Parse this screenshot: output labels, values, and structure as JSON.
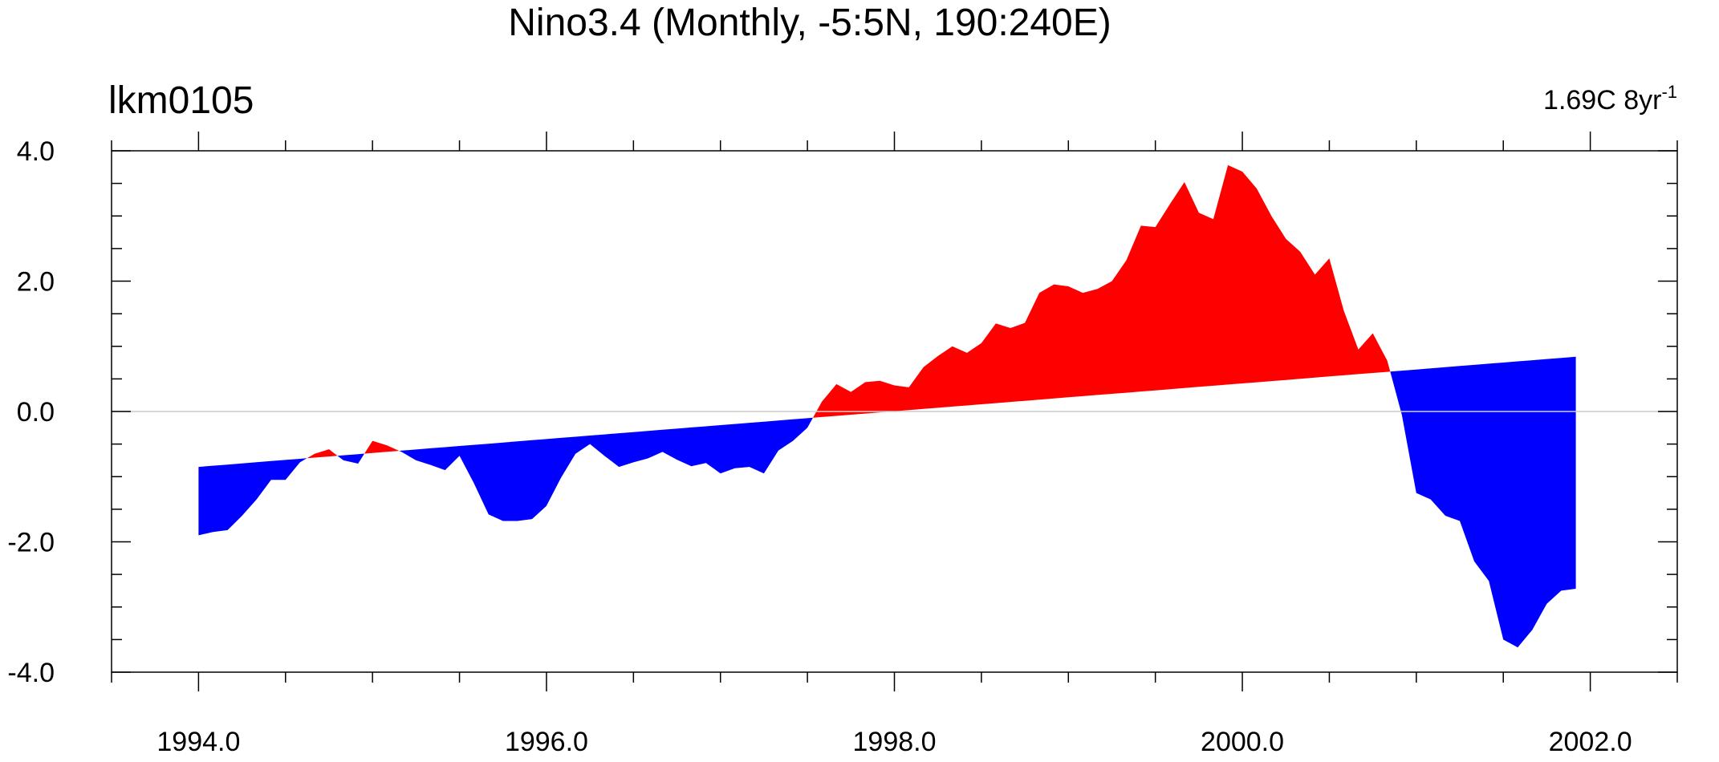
{
  "chart_data": {
    "type": "area",
    "title": "Nino3.4 (Monthly, -5:5N, 190:240E)",
    "subtitle_left": "lkm0105",
    "trend_label": "1.69C 8yr",
    "trend_label_superscript": "-1",
    "xlim": [
      1993.5,
      2002.5
    ],
    "ylim": [
      -4.0,
      4.0
    ],
    "x_ticks": [
      1994,
      1996,
      1998,
      2000,
      2002
    ],
    "x_tick_labels": [
      "1994.0",
      "1996.0",
      "1998.0",
      "2000.0",
      "2002.0"
    ],
    "y_ticks": [
      -4,
      -2,
      0,
      2,
      4
    ],
    "y_tick_labels": [
      "-4.0",
      "-2.0",
      "0.0",
      "2.0",
      "4.0"
    ],
    "reference_line": {
      "start": [
        1994.0,
        -0.85
      ],
      "end": [
        2001.917,
        0.84
      ]
    },
    "above_color": "#ff0000",
    "below_color": "#0000ff",
    "zero_line_color": "#cccccc",
    "series": [
      {
        "x": [
          1994.0,
          1994.083,
          1994.167,
          1994.25,
          1994.333,
          1994.417,
          1994.5,
          1994.583,
          1994.667,
          1994.75,
          1994.833,
          1994.917,
          1995.0,
          1995.083,
          1995.167,
          1995.25,
          1995.333,
          1995.417,
          1995.5,
          1995.583,
          1995.667,
          1995.75,
          1995.833,
          1995.917,
          1996.0,
          1996.083,
          1996.167,
          1996.25,
          1996.333,
          1996.417,
          1996.5,
          1996.583,
          1996.667,
          1996.75,
          1996.833,
          1996.917,
          1997.0,
          1997.083,
          1997.167,
          1997.25,
          1997.333,
          1997.417,
          1997.5,
          1997.583,
          1997.667,
          1997.75,
          1997.833,
          1997.917,
          1998.0,
          1998.083,
          1998.167,
          1998.25,
          1998.333,
          1998.417,
          1998.5,
          1998.583,
          1998.667,
          1998.75,
          1998.833,
          1998.917,
          1999.0,
          1999.083,
          1999.167,
          1999.25,
          1999.333,
          1999.417,
          1999.5,
          1999.583,
          1999.667,
          1999.75,
          1999.833,
          1999.917,
          2000.0,
          2000.083,
          2000.167,
          2000.25,
          2000.333,
          2000.417,
          2000.5,
          2000.583,
          2000.667,
          2000.75,
          2000.833,
          2000.917,
          2001.0,
          2001.083,
          2001.167,
          2001.25,
          2001.333,
          2001.417,
          2001.5,
          2001.583,
          2001.667,
          2001.75,
          2001.833,
          2001.917
        ],
        "values": [
          -1.9,
          -1.85,
          -1.82,
          -1.6,
          -1.35,
          -1.05,
          -1.05,
          -0.78,
          -0.65,
          -0.58,
          -0.75,
          -0.8,
          -0.45,
          -0.52,
          -0.62,
          -0.75,
          -0.82,
          -0.9,
          -0.68,
          -1.1,
          -1.58,
          -1.68,
          -1.68,
          -1.65,
          -1.45,
          -1.02,
          -0.65,
          -0.5,
          -0.68,
          -0.85,
          -0.78,
          -0.72,
          -0.62,
          -0.74,
          -0.84,
          -0.79,
          -0.95,
          -0.87,
          -0.85,
          -0.95,
          -0.6,
          -0.45,
          -0.25,
          0.15,
          0.42,
          0.3,
          0.45,
          0.47,
          0.4,
          0.37,
          0.68,
          0.85,
          1.0,
          0.9,
          1.05,
          1.35,
          1.28,
          1.36,
          1.82,
          1.95,
          1.92,
          1.82,
          1.88,
          2.0,
          2.32,
          2.85,
          2.83,
          3.18,
          3.52,
          3.05,
          2.95,
          3.78,
          3.68,
          3.42,
          3.0,
          2.65,
          2.45,
          2.1,
          2.35,
          1.55,
          0.95,
          1.2,
          0.78,
          -0.05,
          -1.25,
          -1.35,
          -1.6,
          -1.68,
          -2.3,
          -2.6,
          -3.5,
          -3.62,
          -3.35,
          -2.95,
          -2.75,
          -2.72
        ]
      }
    ],
    "grid": false,
    "legend": "none"
  }
}
